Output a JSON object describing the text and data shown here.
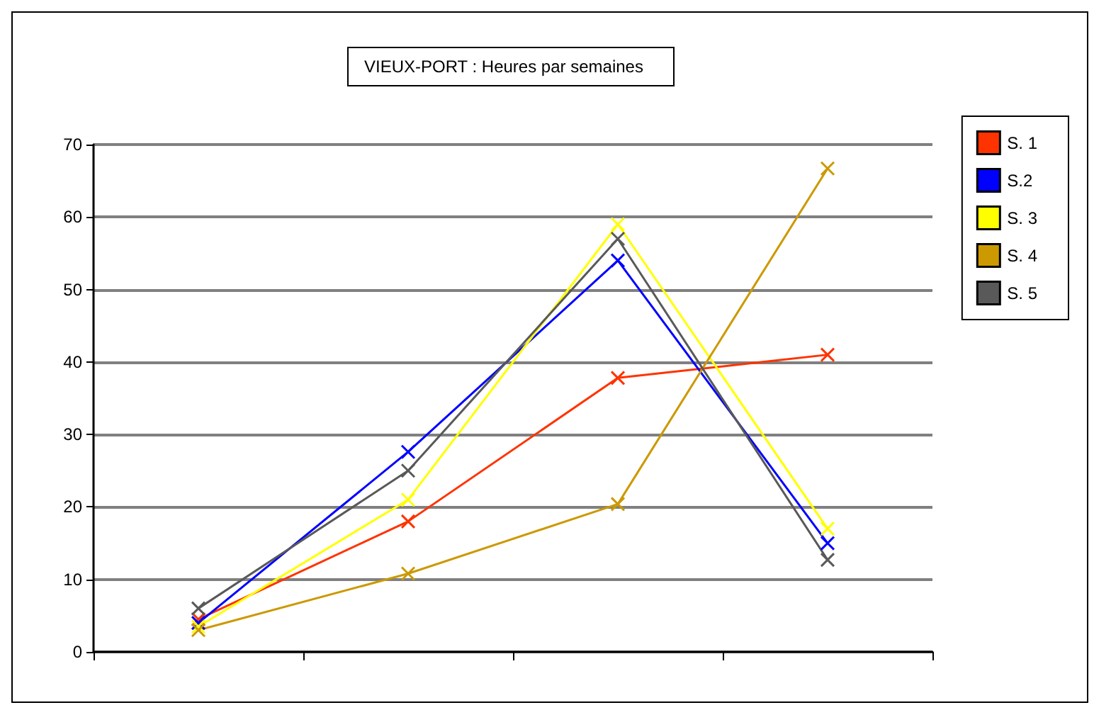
{
  "chart_data": {
    "type": "line",
    "title": "VIEUX-PORT : Heures par semaines",
    "categories": [
      null,
      null,
      null,
      null
    ],
    "series": [
      {
        "name": "S. 1",
        "color": "#ff3300",
        "values": [
          4.5,
          18,
          37.8,
          41
        ]
      },
      {
        "name": "S.2",
        "color": "#0000ff",
        "values": [
          4,
          27.6,
          54,
          15
        ]
      },
      {
        "name": "S. 3",
        "color": "#ffff00",
        "values": [
          3.5,
          21,
          59,
          17
        ]
      },
      {
        "name": "S. 4",
        "color": "#cc9900",
        "values": [
          3,
          10.8,
          20.4,
          66.7
        ]
      },
      {
        "name": "S. 5",
        "color": "#595959",
        "values": [
          6,
          25,
          57,
          12.7
        ]
      }
    ],
    "ylim": [
      0,
      70
    ],
    "yticks": [
      0,
      10,
      20,
      30,
      40,
      50,
      60,
      70
    ],
    "grid": "y",
    "legend": "right",
    "marker": "cross",
    "line_style": "solid"
  }
}
